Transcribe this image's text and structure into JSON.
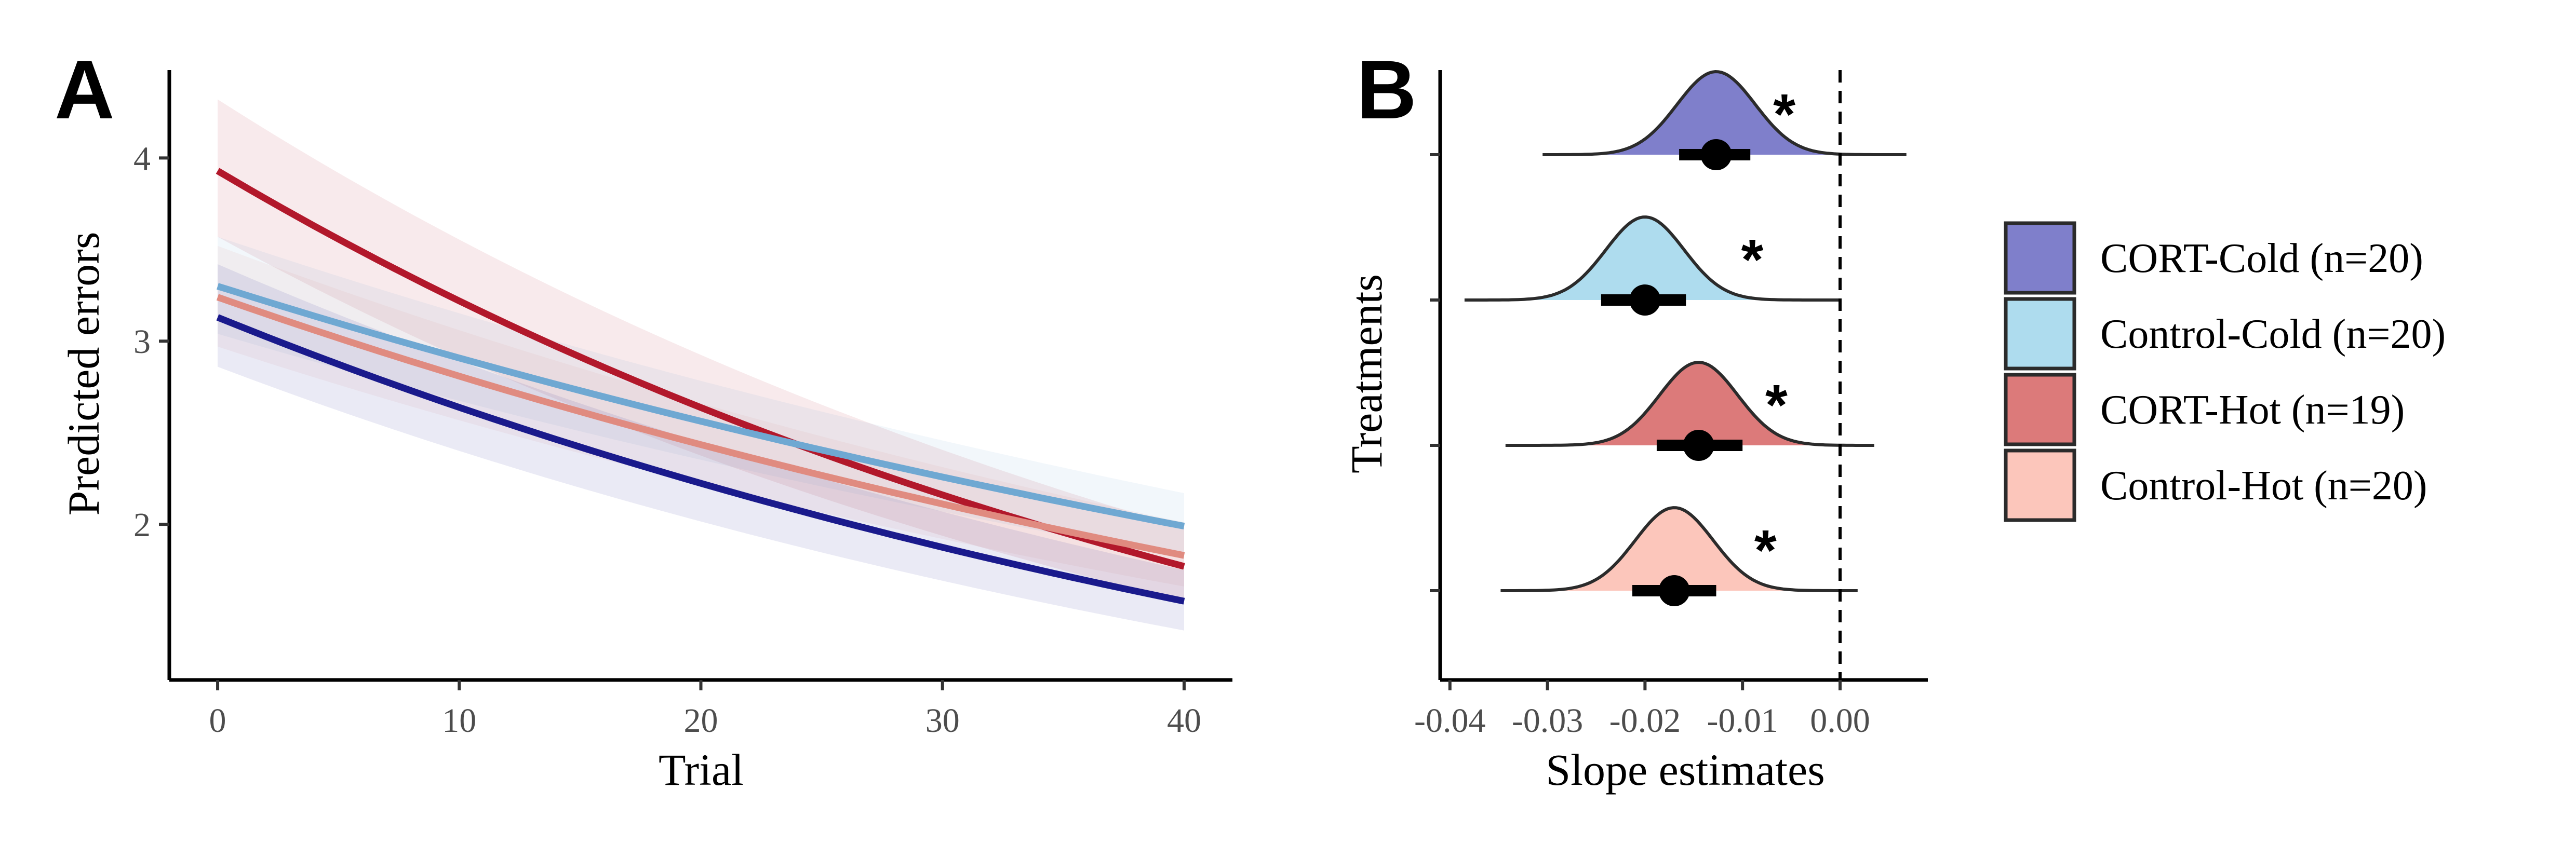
{
  "chart_data": [
    {
      "panel": "A",
      "type": "line",
      "xlabel": "Trial",
      "ylabel": "Predicted errors",
      "xlim": [
        -2,
        42
      ],
      "ylim": [
        1.15,
        4.48
      ],
      "xticks": [
        "0",
        "10",
        "20",
        "30",
        "40"
      ],
      "yticks": [
        "2",
        "3",
        "4"
      ],
      "grid": false,
      "series": [
        {
          "key": "cort-hot",
          "color": "#b2182b",
          "x": [
            0,
            40
          ],
          "y": [
            3.93,
            1.77
          ],
          "ci_low": [
            3.57,
            1.58
          ],
          "ci_high": [
            4.32,
            1.98
          ]
        },
        {
          "key": "control-cold",
          "color": "#6fa8d2",
          "x": [
            0,
            40
          ],
          "y": [
            3.3,
            1.99
          ],
          "ci_low": [
            3.04,
            1.82
          ],
          "ci_high": [
            3.57,
            2.17
          ]
        },
        {
          "key": "control-hot",
          "color": "#e08b80",
          "x": [
            0,
            40
          ],
          "y": [
            3.24,
            1.83
          ],
          "ci_low": [
            2.97,
            1.66
          ],
          "ci_high": [
            3.52,
            2.01
          ]
        },
        {
          "key": "cort-cold",
          "color": "#1a1a8c",
          "x": [
            0,
            40
          ],
          "y": [
            3.13,
            1.58
          ],
          "ci_low": [
            2.86,
            1.42
          ],
          "ci_high": [
            3.42,
            1.75
          ]
        }
      ]
    },
    {
      "panel": "B",
      "type": "density",
      "xlabel": "Slope estimates",
      "ylabel": "Treatments",
      "xlim": [
        -0.041,
        0.009
      ],
      "xticks": [
        "-0.04",
        "-0.03",
        "-0.02",
        "-0.01",
        "0.00"
      ],
      "reference_line": 0,
      "grid": false,
      "series": [
        {
          "name": "CORT-Cold (n=20)",
          "color": "#7f7fcb",
          "median": -0.0127,
          "interval": [
            -0.0165,
            -0.0092
          ],
          "range": [
            -0.0305,
            0.0068
          ],
          "sd": 0.004,
          "significant": true
        },
        {
          "name": "Control-Cold (n=20)",
          "color": "#aedcee",
          "median": -0.02,
          "interval": [
            -0.0245,
            -0.0158
          ],
          "range": [
            -0.0385,
            0.0
          ],
          "sd": 0.004,
          "significant": true
        },
        {
          "name": "CORT-Hot (n=19)",
          "color": "#dc7a7a",
          "median": -0.0145,
          "interval": [
            -0.0188,
            -0.01
          ],
          "range": [
            -0.0343,
            0.0035
          ],
          "sd": 0.004,
          "significant": true
        },
        {
          "name": "Control-Hot (n=20)",
          "color": "#fcc6bb",
          "median": -0.017,
          "interval": [
            -0.0213,
            -0.0127
          ],
          "range": [
            -0.0348,
            0.0018
          ],
          "sd": 0.004,
          "significant": true
        }
      ],
      "significance_label": "*",
      "legend_position": "right"
    }
  ]
}
